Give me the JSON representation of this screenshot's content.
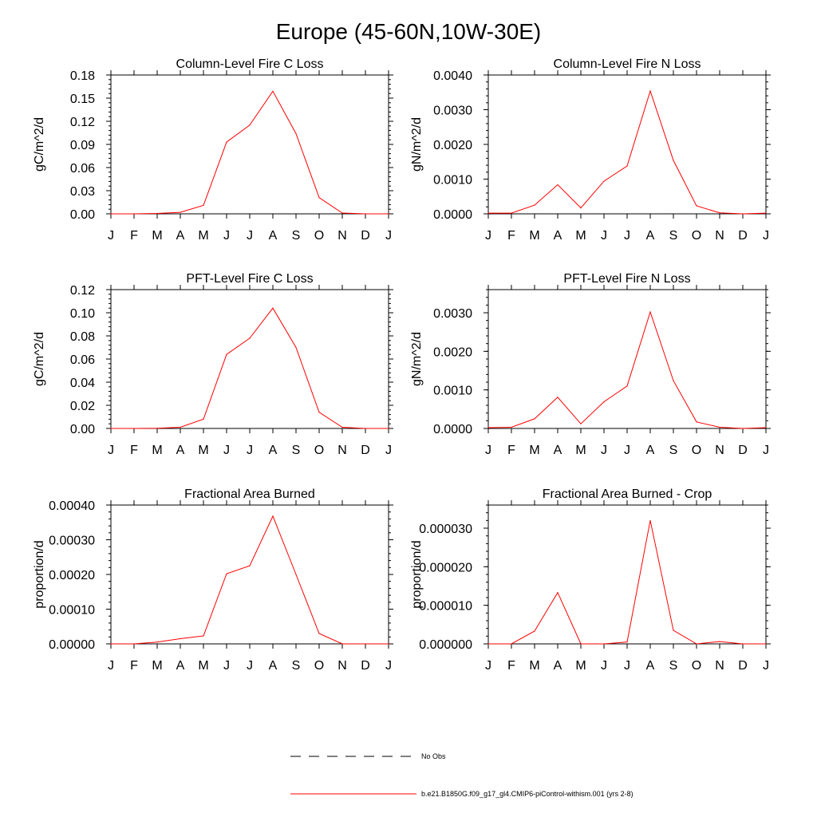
{
  "figure_title": "Europe (45-60N,10W-30E)",
  "colors": {
    "model_line": "#ff0000",
    "obs_line": "#000000",
    "axes": "#000000"
  },
  "legend": {
    "entries": [
      {
        "label": "No Obs",
        "style": "dashed",
        "color": "#000000"
      },
      {
        "label": "b.e21.B1850G.f09_g17_gl4.CMIP6-piControl-withism.001 (yrs 2-8)",
        "style": "solid",
        "color": "#ff0000"
      }
    ]
  },
  "chart_data": [
    {
      "type": "line",
      "title": "Column-Level Fire C Loss",
      "xlabel": "",
      "ylabel": "gC/m^2/d",
      "categories": [
        "J",
        "F",
        "M",
        "A",
        "M",
        "J",
        "J",
        "A",
        "S",
        "O",
        "N",
        "D",
        "J"
      ],
      "yticks": [
        "0.00",
        "0.03",
        "0.06",
        "0.09",
        "0.12",
        "0.15",
        "0.18"
      ],
      "ylim": [
        0,
        0.18
      ],
      "series": [
        {
          "name": "b.e21.B1850G.f09_g17_gl4.CMIP6-piControl-withism.001 (yrs 2-8)",
          "values": [
            0.0,
            0.0,
            0.0005,
            0.002,
            0.011,
            0.093,
            0.115,
            0.159,
            0.104,
            0.021,
            0.001,
            0.0,
            0.0
          ]
        }
      ]
    },
    {
      "type": "line",
      "title": "Column-Level Fire N Loss",
      "xlabel": "",
      "ylabel": "gN/m^2/d",
      "categories": [
        "J",
        "F",
        "M",
        "A",
        "M",
        "J",
        "J",
        "A",
        "S",
        "O",
        "N",
        "D",
        "J"
      ],
      "yticks": [
        "0.0000",
        "0.0010",
        "0.0020",
        "0.0030",
        "0.0040"
      ],
      "ylim": [
        0,
        0.004
      ],
      "series": [
        {
          "name": "b.e21.B1850G.f09_g17_gl4.CMIP6-piControl-withism.001 (yrs 2-8)",
          "values": [
            2e-05,
            2e-05,
            0.00025,
            0.00084,
            0.00017,
            0.00094,
            0.00138,
            0.00354,
            0.00154,
            0.00023,
            3e-05,
            0.0,
            2e-05
          ]
        }
      ]
    },
    {
      "type": "line",
      "title": "PFT-Level Fire C Loss",
      "xlabel": "",
      "ylabel": "gC/m^2/d",
      "categories": [
        "J",
        "F",
        "M",
        "A",
        "M",
        "J",
        "J",
        "A",
        "S",
        "O",
        "N",
        "D",
        "J"
      ],
      "yticks": [
        "0.00",
        "0.02",
        "0.04",
        "0.06",
        "0.08",
        "0.10",
        "0.12"
      ],
      "ylim": [
        0,
        0.12
      ],
      "series": [
        {
          "name": "b.e21.B1850G.f09_g17_gl4.CMIP6-piControl-withism.001 (yrs 2-8)",
          "values": [
            0.0,
            0.0,
            0.0002,
            0.001,
            0.008,
            0.064,
            0.078,
            0.104,
            0.07,
            0.014,
            0.001,
            0.0,
            0.0
          ]
        }
      ]
    },
    {
      "type": "line",
      "title": "PFT-Level Fire N Loss",
      "xlabel": "",
      "ylabel": "gN/m^2/d",
      "categories": [
        "J",
        "F",
        "M",
        "A",
        "M",
        "J",
        "J",
        "A",
        "S",
        "O",
        "N",
        "D",
        "J"
      ],
      "yticks": [
        "0.0000",
        "0.0010",
        "0.0020",
        "0.0030"
      ],
      "ylim": [
        0,
        0.0036
      ],
      "series": [
        {
          "name": "b.e21.B1850G.f09_g17_gl4.CMIP6-piControl-withism.001 (yrs 2-8)",
          "values": [
            2e-05,
            3e-05,
            0.00025,
            0.00081,
            0.00012,
            0.00069,
            0.0011,
            0.00302,
            0.00124,
            0.00017,
            3e-05,
            0.0,
            2e-05
          ]
        }
      ]
    },
    {
      "type": "line",
      "title": "Fractional Area Burned",
      "xlabel": "",
      "ylabel": "proportion/d",
      "categories": [
        "J",
        "F",
        "M",
        "A",
        "M",
        "J",
        "J",
        "A",
        "S",
        "O",
        "N",
        "D",
        "J"
      ],
      "yticks": [
        "0.00000",
        "0.00010",
        "0.00020",
        "0.00030",
        "0.00040"
      ],
      "ylim": [
        0,
        0.0004
      ],
      "series": [
        {
          "name": "b.e21.B1850G.f09_g17_gl4.CMIP6-piControl-withism.001 (yrs 2-8)",
          "values": [
            0.0,
            0.0,
            5e-06,
            1.5e-05,
            2.3e-05,
            0.000202,
            0.000225,
            0.000368,
            0.0002,
            3e-05,
            0.0,
            0.0,
            0.0
          ]
        }
      ]
    },
    {
      "type": "line",
      "title": "Fractional Area Burned - Crop",
      "xlabel": "",
      "ylabel": "proportion/d",
      "categories": [
        "J",
        "F",
        "M",
        "A",
        "M",
        "J",
        "J",
        "A",
        "S",
        "O",
        "N",
        "D",
        "J"
      ],
      "yticks": [
        "0.000000",
        "0.000010",
        "0.000020",
        "0.000030"
      ],
      "ylim": [
        0,
        3.6e-05
      ],
      "series": [
        {
          "name": "b.e21.B1850G.f09_g17_gl4.CMIP6-piControl-withism.001 (yrs 2-8)",
          "values": [
            0.0,
            0.0,
            3.3e-06,
            1.33e-05,
            0.0,
            0.0,
            5e-07,
            3.2e-05,
            3.5e-06,
            0.0,
            6e-07,
            0.0,
            0.0
          ]
        }
      ]
    }
  ]
}
